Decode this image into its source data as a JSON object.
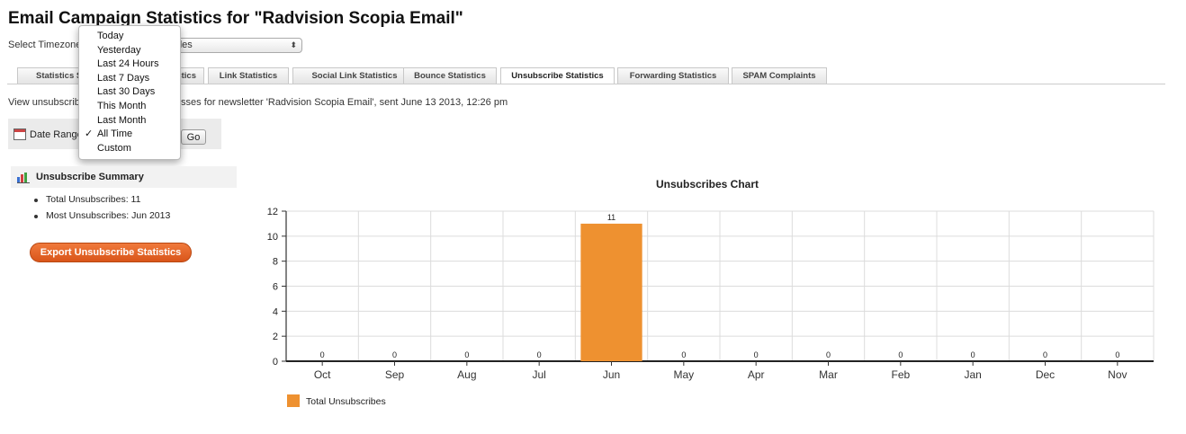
{
  "page_title": "Email Campaign Statistics for \"Radvision Scopia Email\"",
  "timezone": {
    "label": "Select Timezone",
    "value": "Angeles"
  },
  "tabs": [
    {
      "label": "Statistics Su"
    },
    {
      "label": "atistics"
    },
    {
      "label": "Link Statistics"
    },
    {
      "label": "Social Link Statistics"
    },
    {
      "label": "Bounce Statistics"
    },
    {
      "label": "Unsubscribe Statistics",
      "active": true
    },
    {
      "label": "Forwarding Statistics"
    },
    {
      "label": "SPAM Complaints"
    }
  ],
  "view_description": {
    "part1": "View unsubscribe",
    "part2": "sses for newsletter 'Radvision Scopia Email', sent June 13 2013, 12:26 pm"
  },
  "date_range": {
    "label": "Date Range",
    "go_label": "Go"
  },
  "dropdown": {
    "items": [
      "Today",
      "Yesterday",
      "Last 24 Hours",
      "Last 7 Days",
      "Last 30 Days",
      "This Month",
      "Last Month",
      "All Time",
      "Custom"
    ],
    "selected": "All Time",
    "check_mark": "✓"
  },
  "summary": {
    "title": "Unsubscribe Summary",
    "items": [
      "Total Unsubscribes: 11",
      "Most Unsubscribes: Jun 2013"
    ]
  },
  "export_button": "Export Unsubscribe Statistics",
  "colors": {
    "bar": "#EE9130",
    "export": "#E0622A"
  },
  "chart_data": {
    "type": "bar",
    "title": "Unsubscribes Chart",
    "categories": [
      "Oct",
      "Sep",
      "Aug",
      "Jul",
      "Jun",
      "May",
      "Apr",
      "Mar",
      "Feb",
      "Jan",
      "Dec",
      "Nov"
    ],
    "series": [
      {
        "name": "Total Unsubscribes",
        "values": [
          0,
          0,
          0,
          0,
          11,
          0,
          0,
          0,
          0,
          0,
          0,
          0
        ]
      }
    ],
    "ylim": [
      0,
      12
    ],
    "yticks": [
      0,
      2,
      4,
      6,
      8,
      10,
      12
    ],
    "grid": true,
    "legend": "bottom-left"
  }
}
